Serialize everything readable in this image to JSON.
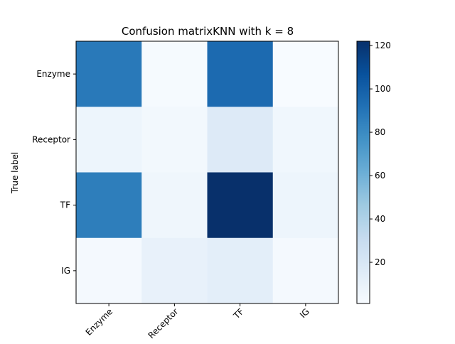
{
  "chart_data": {
    "type": "heatmap",
    "title": "Confusion matrixKNN with k = 8",
    "xlabel": "",
    "ylabel": "True label",
    "x_categories": [
      "Enzyme",
      "Receptor",
      "TF",
      "IG"
    ],
    "y_categories": [
      "Enzyme",
      "Receptor",
      "TF",
      "IG"
    ],
    "values": [
      [
        88,
        2,
        95,
        1
      ],
      [
        7,
        4,
        17,
        5
      ],
      [
        86,
        6,
        122,
        7
      ],
      [
        3,
        10,
        13,
        3
      ]
    ],
    "colormap": "Blues",
    "vmin": 1,
    "vmax": 122,
    "colorbar_ticks": [
      20,
      40,
      60,
      80,
      100,
      120
    ],
    "grid": false
  }
}
